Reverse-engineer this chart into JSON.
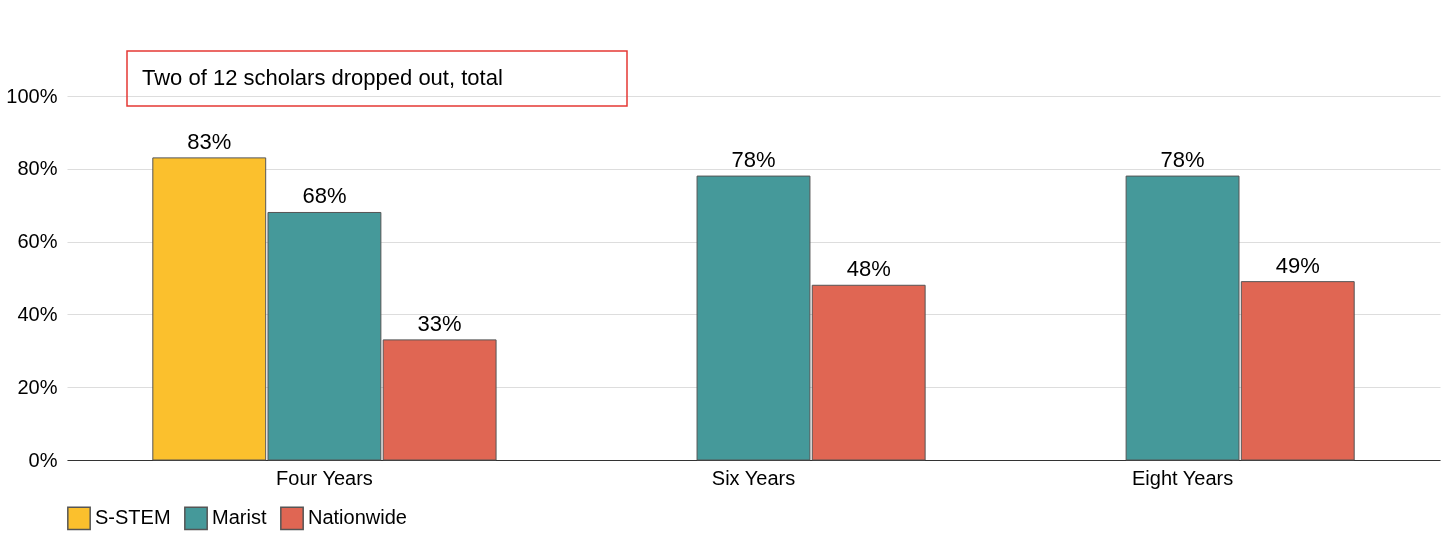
{
  "chart_data": {
    "type": "bar",
    "categories": [
      "Four Years",
      "Six Years",
      "Eight Years"
    ],
    "series": [
      {
        "name": "S-STEM",
        "color": "#fbc02d",
        "values": [
          83,
          null,
          null
        ]
      },
      {
        "name": "Marist",
        "color": "#45999a",
        "values": [
          68,
          78,
          78
        ]
      },
      {
        "name": "Nationwide",
        "color": "#e06653",
        "values": [
          33,
          48,
          49
        ]
      }
    ],
    "value_labels": [
      [
        "83%",
        null,
        null
      ],
      [
        "68%",
        "78%",
        "78%"
      ],
      [
        "33%",
        "48%",
        "49%"
      ]
    ],
    "ylim": [
      0,
      100
    ],
    "yticks": [
      {
        "value": 0,
        "label": "0%"
      },
      {
        "value": 20,
        "label": "20%"
      },
      {
        "value": 40,
        "label": "40%"
      },
      {
        "value": 60,
        "label": "60%"
      },
      {
        "value": 80,
        "label": "80%"
      },
      {
        "value": 100,
        "label": "100%"
      }
    ],
    "grid": "y",
    "legend": "bottom",
    "annotations": [
      "Two of 12 scholars dropped out, total"
    ]
  }
}
